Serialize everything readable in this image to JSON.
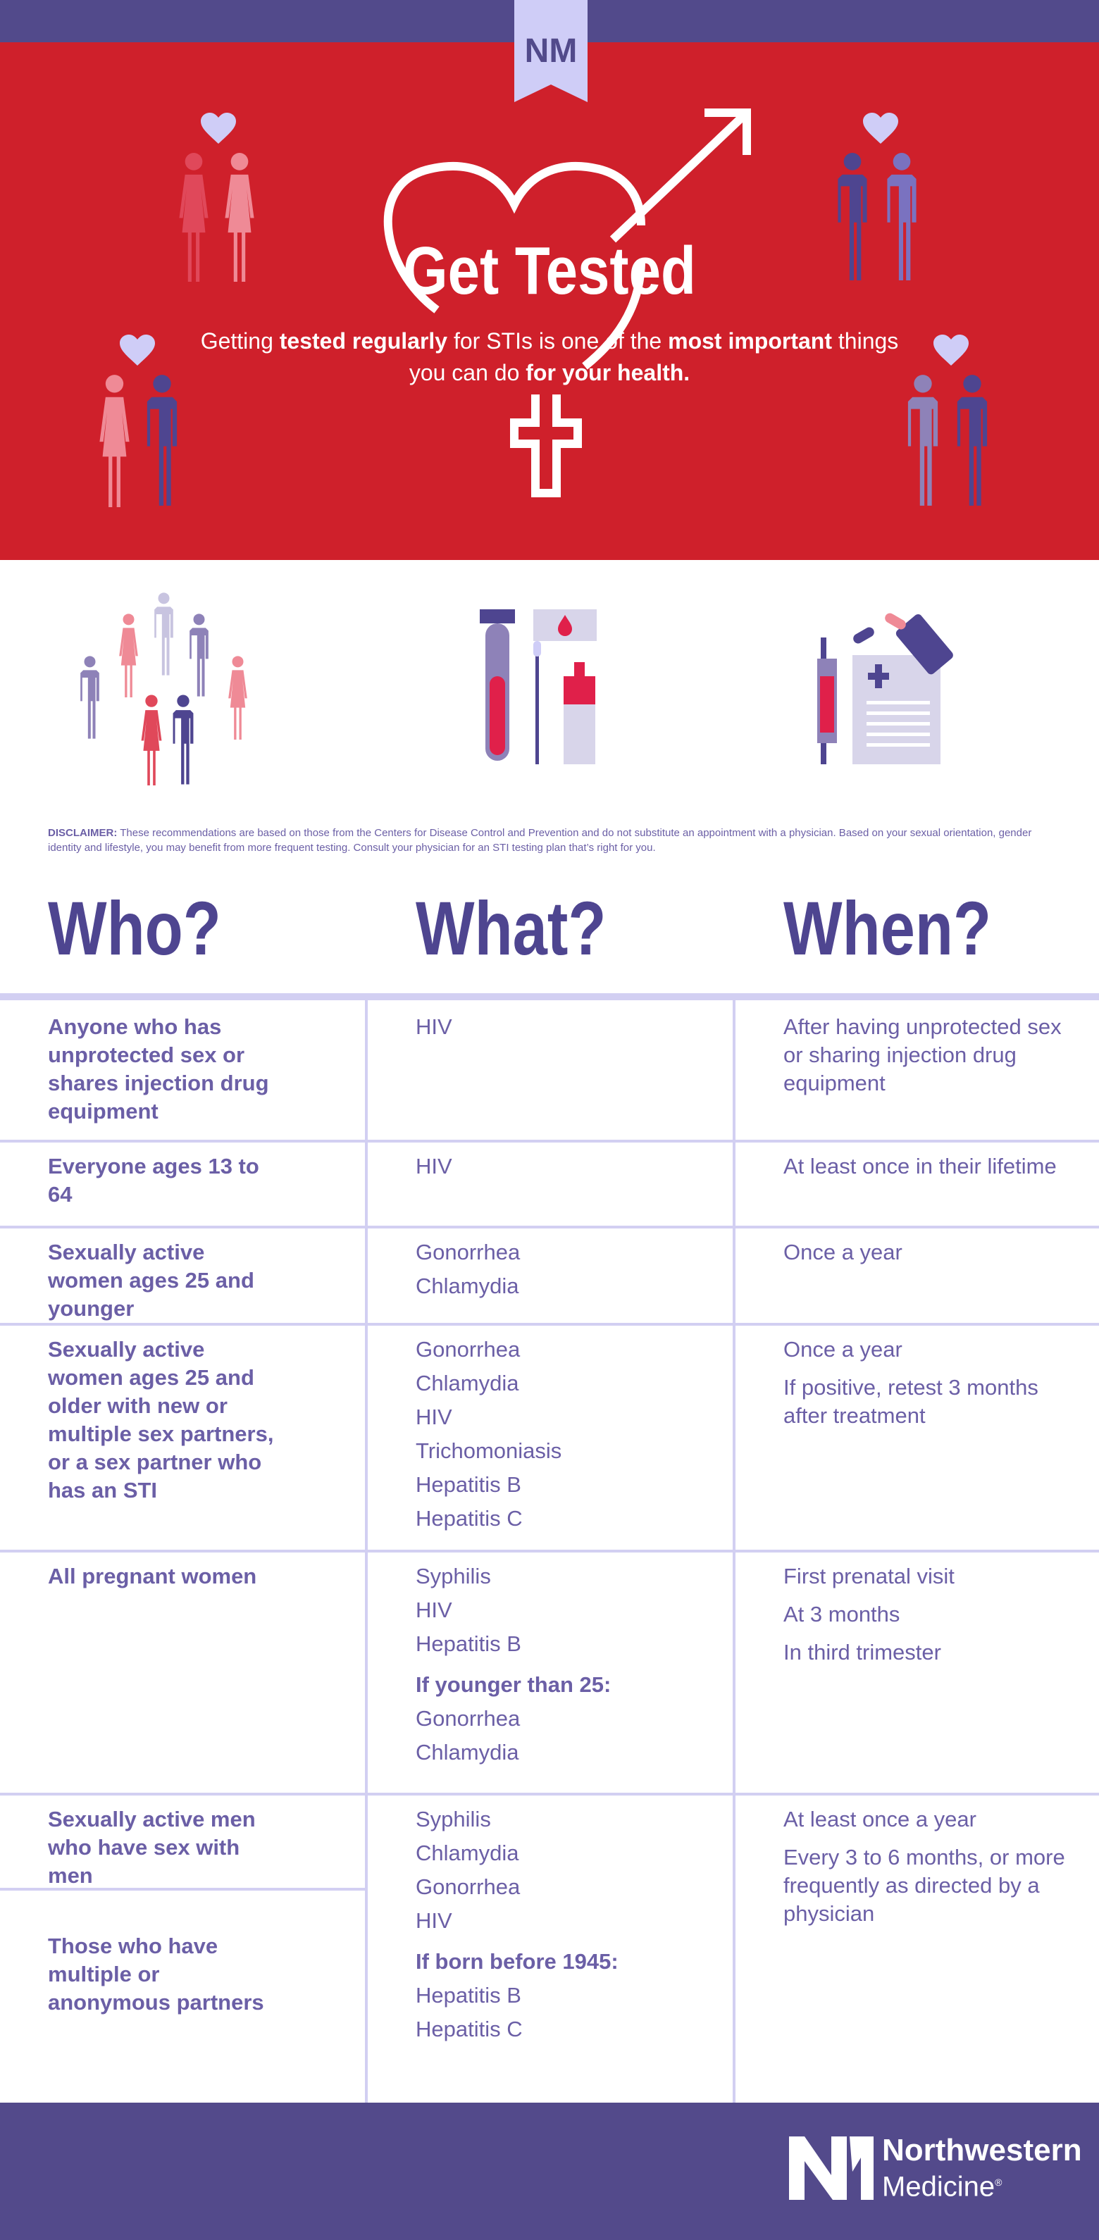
{
  "header": {
    "logo": "NM",
    "title": "Get Tested",
    "subtitle": {
      "p1": "Getting ",
      "b1": "tested regularly",
      "p2": " for STIs is one of the ",
      "b2": "most important",
      "p3": " things you can do ",
      "b3": "for your health."
    }
  },
  "disclaimer": {
    "label": "DISCLAIMER:",
    "text": " These recommendations are based on those from the Centers for Disease Control and Prevention and do not substitute an appointment with a physician. Based on your sexual orientation, gender identity and lifestyle, you may benefit from more frequent testing. Consult your physician for an STI testing plan that’s right for you."
  },
  "columns": [
    "Who?",
    "What?",
    "When?"
  ],
  "rows": [
    {
      "who": [
        "Anyone who has unprotected sex or shares injection drug equipment"
      ],
      "what": [
        "HIV"
      ],
      "when": [
        "After having unprotected sex or sharing injection drug equipment"
      ]
    },
    {
      "who": [
        "Everyone ages 13 to 64"
      ],
      "what": [
        "HIV"
      ],
      "when": [
        "At least once in their lifetime"
      ]
    },
    {
      "who": [
        "Sexually active women ages 25 and younger"
      ],
      "what": [
        "Gonorrhea",
        "Chlamydia"
      ],
      "when": [
        "Once a year"
      ]
    },
    {
      "who": [
        "Sexually active women ages 25 and older with new or multiple sex partners, or a sex partner who has an STI"
      ],
      "what": [
        "Gonorrhea",
        "Chlamydia",
        "HIV",
        "Trichomoniasis",
        "Hepatitis B",
        "Hepatitis C"
      ],
      "when": [
        "Once a year",
        "If positive, retest 3 months after treatment"
      ]
    },
    {
      "who": [
        "All pregnant women"
      ],
      "what": [
        "Syphilis",
        "HIV",
        "Hepatitis B"
      ],
      "what_sub": "If younger than 25:",
      "what2": [
        "Gonorrhea",
        "Chlamydia"
      ],
      "when": [
        "First prenatal visit",
        "At 3 months",
        "In third trimester"
      ]
    },
    {
      "who": [
        "Sexually active men who have sex with men",
        "Those who have multiple or anonymous partners"
      ],
      "what": [
        "Syphilis",
        "Chlamydia",
        "Gonorrhea",
        "HIV"
      ],
      "what_sub": "If born before 1945:",
      "what2": [
        "Hepatitis B",
        "Hepatitis C"
      ],
      "when": [
        "At least once a year",
        "Every 3 to 6 months, or more frequently as directed by a physician"
      ]
    }
  ],
  "footer": {
    "brand_line1": "Northwestern",
    "brand_line2": "Medicine",
    "mark": "®"
  },
  "colors": {
    "purple": "#524a8b",
    "red": "#cf202b",
    "text": "#6b5fa6",
    "rule": "#d2cff2"
  }
}
